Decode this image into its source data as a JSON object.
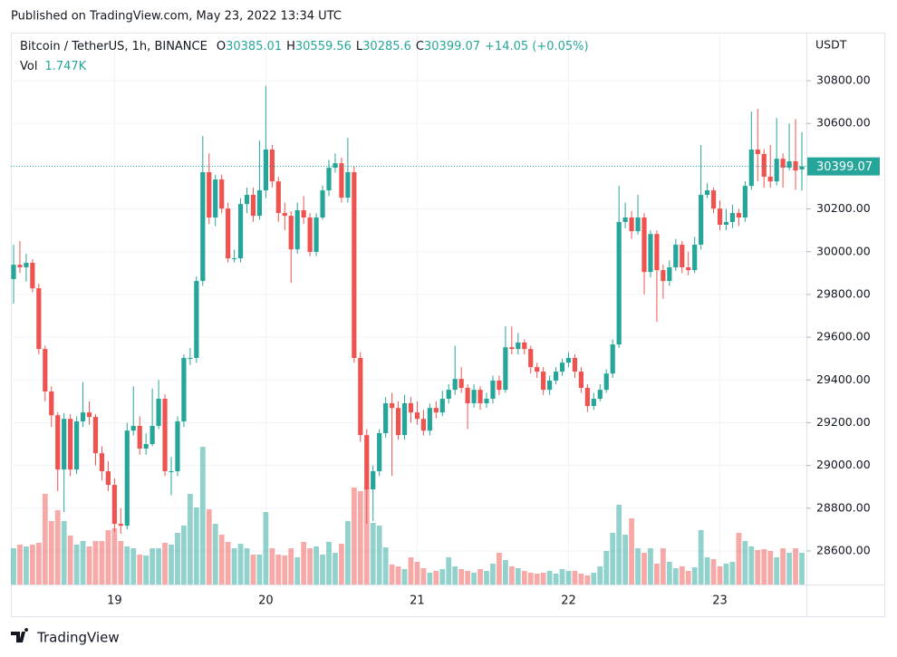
{
  "header": {
    "published": "Published on TradingView.com, May 23, 2022 13:34 UTC"
  },
  "legend": {
    "symbol": "Bitcoin / TetherUS, 1h, BINANCE",
    "field_labels": [
      "O",
      "H",
      "L",
      "C"
    ],
    "change": "+14.05 (+0.05%)",
    "volume_label": "Vol",
    "volume": "1.747K"
  },
  "footer": {
    "brand": "TradingView"
  },
  "chart_data": {
    "type": "candlestick",
    "y_axis_label": "USDT",
    "categories": [
      null,
      null,
      null,
      null,
      null,
      null,
      null,
      null,
      null,
      null,
      null,
      null,
      null,
      null,
      null,
      null,
      "19",
      null,
      null,
      null,
      null,
      null,
      null,
      null,
      null,
      null,
      null,
      null,
      null,
      null,
      null,
      null,
      null,
      null,
      null,
      null,
      null,
      null,
      null,
      null,
      "20",
      null,
      null,
      null,
      null,
      null,
      null,
      null,
      null,
      null,
      null,
      null,
      null,
      null,
      null,
      null,
      null,
      null,
      null,
      null,
      null,
      null,
      null,
      null,
      "21",
      null,
      null,
      null,
      null,
      null,
      null,
      null,
      null,
      null,
      null,
      null,
      null,
      null,
      null,
      null,
      null,
      null,
      null,
      null,
      null,
      null,
      null,
      null,
      "22",
      null,
      null,
      null,
      null,
      null,
      null,
      null,
      null,
      null,
      null,
      null,
      null,
      null,
      null,
      null,
      null,
      null,
      null,
      null,
      null,
      null,
      null,
      null,
      "23",
      null,
      null,
      null,
      null,
      null,
      null,
      null,
      null,
      null,
      null,
      null,
      null,
      null
    ],
    "open": [
      29872,
      29939,
      29927,
      29948,
      29829,
      29545,
      29346,
      29235,
      28981,
      29218,
      28981,
      29206,
      29248,
      29227,
      29057,
      28973,
      28909,
      28727,
      28718,
      29163,
      29185,
      29079,
      29100,
      29185,
      29312,
      28973,
      28973,
      29206,
      29503,
      29503,
      29863,
      30372,
      30160,
      30338,
      30202,
      29969,
      29969,
      30223,
      30266,
      30168,
      30287,
      30478,
      30329,
      30181,
      30168,
      30011,
      30194,
      30160,
      29999,
      30160,
      30287,
      30393,
      30414,
      30253,
      30372,
      29503,
      29142,
      28888,
      28973,
      29151,
      29291,
      29269,
      29142,
      29291,
      29248,
      29218,
      29163,
      29269,
      29248,
      29312,
      29354,
      29405,
      29363,
      29291,
      29354,
      29291,
      29312,
      29397,
      29354,
      29553,
      29545,
      29575,
      29545,
      29460,
      29439,
      29354,
      29397,
      29439,
      29481,
      29503,
      29439,
      29363,
      29278,
      29312,
      29354,
      29430,
      29566,
      30139,
      30160,
      30096,
      30160,
      29905,
      30083,
      29914,
      29863,
      29927,
      30033,
      29927,
      29914,
      30033,
      30266,
      30287,
      30202,
      30126,
      30139,
      30181,
      30160,
      30308,
      30478,
      30457,
      30351,
      30329,
      30435,
      30393,
      30423,
      30385.01
    ],
    "high": [
      30033,
      30050,
      29990,
      29965,
      29850,
      29560,
      29370,
      29250,
      29245,
      29240,
      29230,
      29390,
      29300,
      29240,
      29090,
      29020,
      28940,
      28800,
      29200,
      29370,
      29230,
      29150,
      29360,
      29400,
      29333,
      29040,
      29230,
      29520,
      29550,
      29884,
      30541,
      30460,
      30360,
      30360,
      30230,
      30010,
      30250,
      30300,
      30300,
      30520,
      30776,
      30500,
      30350,
      30230,
      30190,
      30230,
      30260,
      30180,
      30180,
      30310,
      30430,
      30460,
      30440,
      30533,
      30400,
      29530,
      29170,
      29000,
      29170,
      29320,
      29340,
      29300,
      29330,
      29320,
      29300,
      29260,
      29290,
      29300,
      29350,
      29380,
      29560,
      29460,
      29380,
      29380,
      29370,
      29340,
      29420,
      29420,
      29651,
      29650,
      29620,
      29590,
      29560,
      29480,
      29460,
      29420,
      29460,
      29500,
      29530,
      29520,
      29460,
      29380,
      29340,
      29380,
      29450,
      29590,
      30308,
      30230,
      30190,
      30266,
      30180,
      30100,
      30100,
      29940,
      29960,
      30060,
      30050,
      30000,
      30070,
      30499,
      30320,
      30300,
      30240,
      30200,
      30220,
      30200,
      30330,
      30656,
      30669,
      30480,
      30500,
      30626,
      30460,
      30600,
      30620,
      30559.56
    ],
    "low": [
      29757,
      29900,
      29860,
      29810,
      29520,
      29300,
      29180,
      28880,
      28782,
      28950,
      28960,
      29180,
      29190,
      29000,
      28930,
      28880,
      28690,
      28680,
      28700,
      29140,
      29050,
      29050,
      29090,
      29170,
      28950,
      28860,
      28950,
      29180,
      29470,
      29480,
      29840,
      30130,
      30120,
      30180,
      29950,
      29950,
      29950,
      30180,
      30140,
      30150,
      30250,
      30300,
      30140,
      30100,
      29854,
      29990,
      30130,
      29980,
      29980,
      30150,
      30260,
      30370,
      30230,
      30230,
      29480,
      29110,
      28727,
      28740,
      28950,
      29130,
      28951,
      29120,
      29120,
      29200,
      29190,
      29140,
      29140,
      29220,
      29230,
      29290,
      29330,
      29340,
      29170,
      29270,
      29260,
      29270,
      29290,
      29330,
      29340,
      29520,
      29520,
      29520,
      29430,
      29410,
      29330,
      29330,
      29380,
      29420,
      29460,
      29410,
      29340,
      29250,
      29260,
      29300,
      29340,
      29410,
      29550,
      30110,
      30060,
      30080,
      29800,
      29880,
      29672,
      29780,
      29840,
      29910,
      29900,
      29890,
      29900,
      30010,
      30250,
      30180,
      30100,
      30100,
      30110,
      30120,
      30140,
      30290,
      30330,
      30300,
      30300,
      30310,
      30300,
      30380,
      30290,
      30285.6
    ],
    "close": [
      29939,
      29927,
      29948,
      29829,
      29545,
      29346,
      29235,
      28981,
      29218,
      28981,
      29206,
      29248,
      29227,
      29057,
      28973,
      28909,
      28727,
      28718,
      29163,
      29185,
      29079,
      29100,
      29185,
      29312,
      28973,
      28973,
      29206,
      29503,
      29503,
      29863,
      30372,
      30160,
      30338,
      30202,
      29969,
      29969,
      30223,
      30266,
      30168,
      30287,
      30478,
      30329,
      30181,
      30168,
      30011,
      30194,
      30160,
      29999,
      30160,
      30287,
      30393,
      30414,
      30253,
      30372,
      29503,
      29142,
      28888,
      28973,
      29151,
      29291,
      29269,
      29142,
      29291,
      29248,
      29218,
      29163,
      29269,
      29248,
      29312,
      29354,
      29405,
      29363,
      29291,
      29354,
      29291,
      29312,
      29397,
      29354,
      29553,
      29545,
      29575,
      29545,
      29460,
      29439,
      29354,
      29397,
      29439,
      29481,
      29503,
      29439,
      29363,
      29278,
      29312,
      29354,
      29430,
      29566,
      30139,
      30160,
      30096,
      30160,
      29905,
      30083,
      29914,
      29863,
      29927,
      30033,
      29927,
      29914,
      30033,
      30266,
      30287,
      30202,
      30126,
      30139,
      30181,
      30160,
      30308,
      30478,
      30457,
      30351,
      30329,
      30435,
      30393,
      30423,
      30380,
      30399.07
    ],
    "volume": [
      2000,
      2200,
      2100,
      2200,
      2300,
      5000,
      3500,
      4100,
      3500,
      2700,
      2200,
      2400,
      2100,
      2400,
      2400,
      3000,
      3100,
      2400,
      2100,
      2000,
      1650,
      1600,
      2000,
      2000,
      2300,
      2200,
      2850,
      3250,
      5000,
      4250,
      7600,
      4150,
      3350,
      2750,
      2350,
      2000,
      2250,
      2000,
      1650,
      1650,
      4000,
      2000,
      1650,
      1600,
      2000,
      1500,
      2350,
      2000,
      2100,
      1650,
      2350,
      1750,
      2250,
      3500,
      5350,
      5150,
      5400,
      3400,
      3250,
      2050,
      1100,
      1000,
      850,
      1500,
      1250,
      900,
      650,
      750,
      850,
      1500,
      1000,
      850,
      750,
      650,
      850,
      750,
      1150,
      1750,
      1350,
      1000,
      900,
      750,
      650,
      600,
      650,
      750,
      600,
      850,
      750,
      750,
      600,
      500,
      650,
      1000,
      1850,
      2850,
      4400,
      2750,
      3650,
      2000,
      1750,
      2000,
      1150,
      2000,
      1250,
      900,
      1000,
      750,
      950,
      3000,
      1500,
      1400,
      1000,
      1150,
      1250,
      2850,
      2400,
      2100,
      1900,
      1950,
      1850,
      1500,
      2000,
      1750,
      2000,
      1747
    ],
    "up_color": "#26a69a",
    "down_color": "#ef5350",
    "ylim": [
      28443,
      31025
    ],
    "yticks": [
      {
        "value": 28600,
        "label": "28600.00"
      },
      {
        "value": 28800,
        "label": "28800.00"
      },
      {
        "value": 29000,
        "label": "29000.00"
      },
      {
        "value": 29200,
        "label": "29200.00"
      },
      {
        "value": 29400,
        "label": "29400.00"
      },
      {
        "value": 29600,
        "label": "29600.00"
      },
      {
        "value": 29800,
        "label": "29800.00"
      },
      {
        "value": 30000,
        "label": "30000.00"
      },
      {
        "value": 30200,
        "label": "30200.00"
      },
      {
        "value": 30400,
        "label": "30400.00"
      },
      {
        "value": 30600,
        "label": "30600.00"
      },
      {
        "value": 30800,
        "label": "30800.00"
      }
    ],
    "grid": true,
    "last_price_line": true
  }
}
